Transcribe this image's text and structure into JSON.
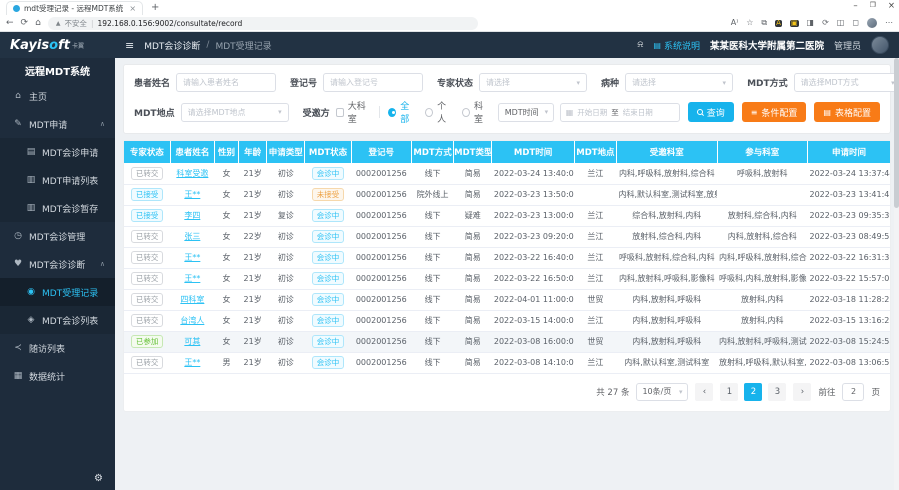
{
  "accent_color": "#2cc2f4",
  "orange_color": "#f87b17",
  "navy_color": "#223243",
  "browser": {
    "tab_title": "mdt受理记录 - 远程MDT系统",
    "new_tab": "+",
    "security_label": "不安全",
    "url": "192.168.0.156:9002/consultate/record"
  },
  "icons": {
    "back": "←",
    "refresh": "⟳",
    "home": "⌂",
    "warn": "▲",
    "read_aloud": "A⁾",
    "star": "☆",
    "copy": "⧉",
    "ext_a": "A",
    "ext_b": "▣",
    "ext_c": "◨",
    "split": "◫",
    "puzzle": "◻",
    "more": "⋯",
    "min": "–",
    "restore": "❐",
    "close": "×",
    "menu_home": "⌂",
    "menu_edit": "✎",
    "menu_form": "▤",
    "menu_list": "▥",
    "menu_clock": "◷",
    "menu_heart": "♥",
    "menu_user": "◉",
    "menu_shield": "◈",
    "menu_share": "≺",
    "menu_chart": "▦",
    "caret_up": "∧",
    "caret_down": "▾",
    "gear": "⚙",
    "hamburger": "≡",
    "bell": "⍾",
    "doc": "▤",
    "calendar": "▦",
    "filter": "≡",
    "grid": "▤"
  },
  "brand": {
    "logo_pre": "Kayis",
    "logo_o": "o",
    "logo_post": "ft",
    "logo_suffix": "卡翼",
    "app_title": "远程MDT系统"
  },
  "topbar": {
    "breadcrumb_section": "MDT会诊诊断",
    "breadcrumb_sep": "/",
    "breadcrumb_page": "MDT受理记录",
    "system_help": "系统说明",
    "hospital": "某某医科大学附属第二医院",
    "user_role": "管理员"
  },
  "sidebar": {
    "items": [
      {
        "label": "主页",
        "icon": "menu_home",
        "type": "item"
      },
      {
        "label": "MDT申请",
        "icon": "menu_edit",
        "type": "group",
        "expanded": true,
        "children": [
          {
            "label": "MDT会诊申请",
            "icon": "menu_form"
          },
          {
            "label": "MDT申请列表",
            "icon": "menu_list"
          },
          {
            "label": "MDT会诊暂存",
            "icon": "menu_list"
          }
        ]
      },
      {
        "label": "MDT会诊管理",
        "icon": "menu_clock",
        "type": "item"
      },
      {
        "label": "MDT会诊诊断",
        "icon": "menu_heart",
        "type": "group",
        "expanded": true,
        "children": [
          {
            "label": "MDT受理记录",
            "icon": "menu_user",
            "active": true
          },
          {
            "label": "MDT会诊列表",
            "icon": "menu_shield"
          }
        ]
      },
      {
        "label": "随访列表",
        "icon": "menu_share",
        "type": "item"
      },
      {
        "label": "数据统计",
        "icon": "menu_chart",
        "type": "item"
      }
    ]
  },
  "filters": {
    "patient_name_label": "患者姓名",
    "patient_name_placeholder": "请输入患者姓名",
    "reg_no_label": "登记号",
    "reg_no_placeholder": "请输入登记号",
    "expert_status_label": "专家状态",
    "expert_status_placeholder": "请选择",
    "disease_label": "病种",
    "disease_placeholder": "请选择",
    "mdt_mode_label": "MDT方式",
    "mdt_mode_placeholder": "请选择MDT方式",
    "mdt_place_label": "MDT地点",
    "mdt_place_placeholder": "请选择MDT地点",
    "invitee_label": "受邀方",
    "invitee_checkbox_label": "大科室",
    "radio_options": [
      "全部",
      "个人",
      "科室"
    ],
    "radio_selected": "全部",
    "time_field_value": "MDT时间",
    "date_start_placeholder": "开始日期",
    "date_sep": "至",
    "date_end_placeholder": "结束日期",
    "search_button": "查询",
    "condition_button": "条件配置",
    "table_config_button": "表格配置"
  },
  "table": {
    "columns": [
      "专家状态",
      "患者姓名",
      "性别",
      "年龄",
      "申请类型",
      "MDT状态",
      "登记号",
      "MDT方式",
      "MDT类型",
      "MDT时间",
      "MDT地点",
      "受邀科室",
      "参与科室",
      "申请时间"
    ],
    "rows": [
      {
        "expert_status": "已转交",
        "expert_status_type": "info",
        "patient_name": "科室受邀",
        "gender": "女",
        "age": "21岁",
        "apply_type": "初诊",
        "mdt_status": "会诊中",
        "mdt_status_type": "primary",
        "reg_no": "0002001256",
        "mdt_mode": "线下",
        "mdt_type": "简易",
        "mdt_time": "2022-03-24 13:40:00",
        "mdt_place": "兰江",
        "invited_depts": "内科,呼吸科,放射科,综合科",
        "joined_depts": "呼吸科,放射科",
        "apply_time": "2022-03-24 13:37:44",
        "highlighted": false
      },
      {
        "expert_status": "已接受",
        "expert_status_type": "primary",
        "patient_name": "王**",
        "gender": "女",
        "age": "21岁",
        "apply_type": "初诊",
        "mdt_status": "未接受",
        "mdt_status_type": "warning",
        "reg_no": "0002001256",
        "mdt_mode": "院外线上",
        "mdt_type": "简易",
        "mdt_time": "2022-03-23 13:50:00",
        "mdt_place": "",
        "invited_depts": "内科,默认科室,测试科室,放射科",
        "joined_depts": "",
        "apply_time": "2022-03-23 13:41:45",
        "highlighted": false
      },
      {
        "expert_status": "已接受",
        "expert_status_type": "primary",
        "patient_name": "李四",
        "gender": "女",
        "age": "21岁",
        "apply_type": "复诊",
        "mdt_status": "会诊中",
        "mdt_status_type": "primary",
        "reg_no": "0002001256",
        "mdt_mode": "线下",
        "mdt_type": "疑难",
        "mdt_time": "2022-03-23 13:00:00",
        "mdt_place": "兰江",
        "invited_depts": "综合科,放射科,内科",
        "joined_depts": "放射科,综合科,内科",
        "apply_time": "2022-03-23 09:35:39",
        "highlighted": false
      },
      {
        "expert_status": "已转交",
        "expert_status_type": "info",
        "patient_name": "张三",
        "gender": "女",
        "age": "22岁",
        "apply_type": "初诊",
        "mdt_status": "会诊中",
        "mdt_status_type": "primary",
        "reg_no": "0002001256",
        "mdt_mode": "线下",
        "mdt_type": "简易",
        "mdt_time": "2022-03-23 09:20:00",
        "mdt_place": "兰江",
        "invited_depts": "放射科,综合科,内科",
        "joined_depts": "内科,放射科,综合科",
        "apply_time": "2022-03-23 08:49:53",
        "highlighted": false
      },
      {
        "expert_status": "已转交",
        "expert_status_type": "info",
        "patient_name": "王**",
        "gender": "女",
        "age": "21岁",
        "apply_type": "初诊",
        "mdt_status": "会诊中",
        "mdt_status_type": "primary",
        "reg_no": "0002001256",
        "mdt_mode": "线下",
        "mdt_type": "简易",
        "mdt_time": "2022-03-22 16:40:00",
        "mdt_place": "兰江",
        "invited_depts": "呼吸科,放射科,综合科,内科",
        "joined_depts": "内科,呼吸科,放射科,综合科",
        "apply_time": "2022-03-22 16:31:36",
        "highlighted": false
      },
      {
        "expert_status": "已转交",
        "expert_status_type": "info",
        "patient_name": "王**",
        "gender": "女",
        "age": "21岁",
        "apply_type": "初诊",
        "mdt_status": "会诊中",
        "mdt_status_type": "primary",
        "reg_no": "0002001256",
        "mdt_mode": "线下",
        "mdt_type": "简易",
        "mdt_time": "2022-03-22 16:50:00",
        "mdt_place": "兰江",
        "invited_depts": "内科,放射科,呼吸科,影像科",
        "joined_depts": "呼吸科,内科,放射科,影像科",
        "apply_time": "2022-03-22 15:57:03",
        "highlighted": false
      },
      {
        "expert_status": "已转交",
        "expert_status_type": "info",
        "patient_name": "四科室",
        "gender": "女",
        "age": "21岁",
        "apply_type": "初诊",
        "mdt_status": "会诊中",
        "mdt_status_type": "primary",
        "reg_no": "0002001256",
        "mdt_mode": "线下",
        "mdt_type": "简易",
        "mdt_time": "2022-04-01 11:00:00",
        "mdt_place": "世贸",
        "invited_depts": "内科,放射科,呼吸科",
        "joined_depts": "放射科,内科",
        "apply_time": "2022-03-18 11:28:25",
        "highlighted": false
      },
      {
        "expert_status": "已转交",
        "expert_status_type": "info",
        "patient_name": "台湾人",
        "gender": "女",
        "age": "21岁",
        "apply_type": "初诊",
        "mdt_status": "会诊中",
        "mdt_status_type": "primary",
        "reg_no": "0002001256",
        "mdt_mode": "线下",
        "mdt_type": "简易",
        "mdt_time": "2022-03-15 14:00:00",
        "mdt_place": "兰江",
        "invited_depts": "内科,放射科,呼吸科",
        "joined_depts": "放射科,内科",
        "apply_time": "2022-03-15 13:16:26",
        "highlighted": false
      },
      {
        "expert_status": "已参加",
        "expert_status_type": "success",
        "patient_name": "可其",
        "gender": "女",
        "age": "21岁",
        "apply_type": "初诊",
        "mdt_status": "会诊中",
        "mdt_status_type": "primary",
        "reg_no": "0002001256",
        "mdt_mode": "线下",
        "mdt_type": "简易",
        "mdt_time": "2022-03-08 16:00:00",
        "mdt_place": "世贸",
        "invited_depts": "内科,放射科,呼吸科",
        "joined_depts": "内科,放射科,呼吸科,测试科室",
        "apply_time": "2022-03-08 15:24:58",
        "highlighted": true
      },
      {
        "expert_status": "已转交",
        "expert_status_type": "info",
        "patient_name": "王**",
        "gender": "男",
        "age": "21岁",
        "apply_type": "初诊",
        "mdt_status": "会诊中",
        "mdt_status_type": "primary",
        "reg_no": "0002001256",
        "mdt_mode": "线下",
        "mdt_type": "简易",
        "mdt_time": "2022-03-08 14:10:00",
        "mdt_place": "兰江",
        "invited_depts": "内科,默认科室,测试科室",
        "joined_depts": "放射科,呼吸科,默认科室,测...",
        "apply_time": "2022-03-08 13:06:56",
        "highlighted": false
      }
    ]
  },
  "pagination": {
    "total_text": "共 27 条",
    "page_size_value": "10条/页",
    "prev": "‹",
    "next": "›",
    "pages": [
      "1",
      "2",
      "3"
    ],
    "active_page": "2",
    "goto_label": "前往",
    "goto_value": "2",
    "goto_suffix": "页"
  }
}
